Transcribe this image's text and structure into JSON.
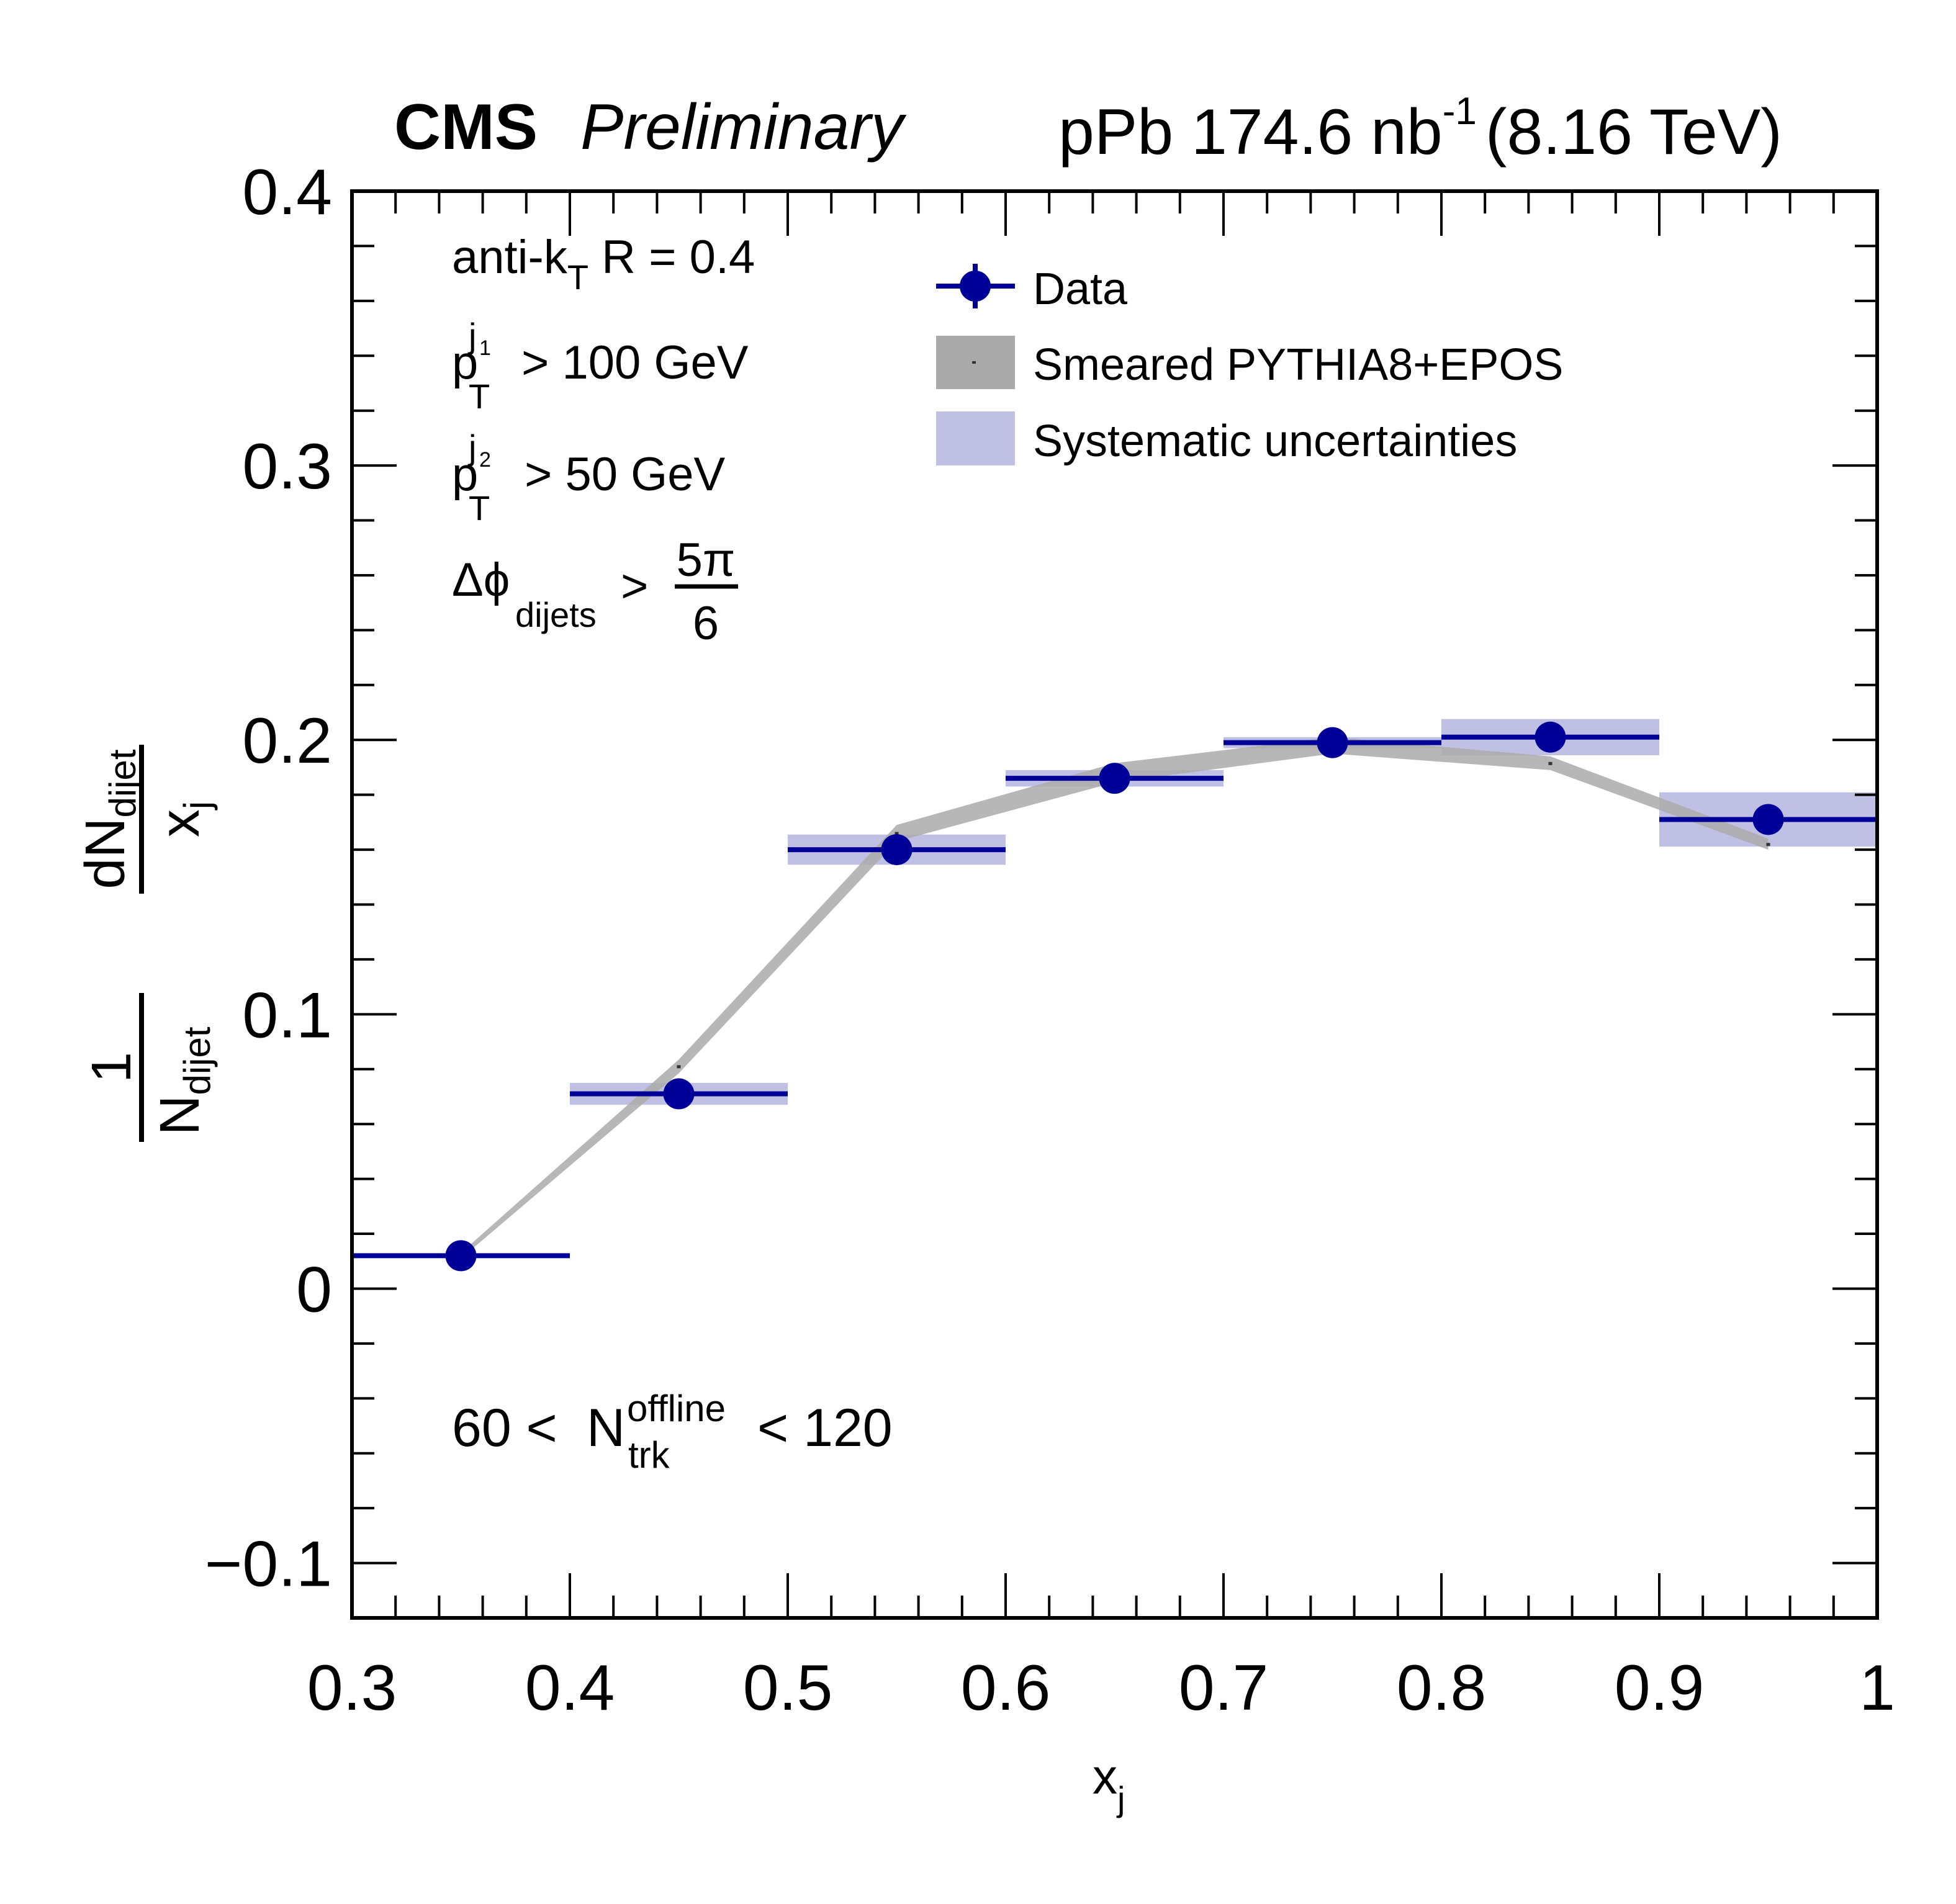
{
  "header": {
    "experiment": "CMS",
    "status": "Preliminary",
    "lumi_prefix": "pPb 174.6 nb",
    "lumi_exp": "-1",
    "energy": "(8.16 TeV)"
  },
  "annotations": {
    "jet_algo_main": "anti-k",
    "jet_algo_sub": "T",
    "jet_algo_rest": " R = 0.4",
    "pt1_p": "p",
    "pt1_sub": "T",
    "pt1_sup": "j",
    "pt1_supsub": "1",
    "pt1_rest": "> 100 GeV",
    "pt2_p": "p",
    "pt2_sub": "T",
    "pt2_sup": "j",
    "pt2_supsub": "2",
    "pt2_rest": "> 50 GeV",
    "dphi_main": "Δϕ",
    "dphi_sub": "dijets",
    "dphi_gt": ">",
    "dphi_num": "5π",
    "dphi_den": "6",
    "ntrk_lo": "60 <",
    "ntrk_N": "N",
    "ntrk_sup": "offline",
    "ntrk_sub": "trk",
    "ntrk_hi": "< 120"
  },
  "legend": {
    "placement": "top-center",
    "entries": [
      {
        "label": "Data",
        "style": "marker"
      },
      {
        "label": "Smeared PYTHIA8+EPOS",
        "style": "gray-band"
      },
      {
        "label": "Systematic uncertainties",
        "style": "blue-box"
      }
    ]
  },
  "colors": {
    "data": "#000099",
    "mc_band": "#aaaaaa",
    "mc_marker": "#333333",
    "syst_box": "#bfc0e3",
    "axis": "#000000"
  },
  "chart_data": {
    "type": "scatter",
    "title": "CMS Preliminary",
    "xlabel": "x_j",
    "ylabel": "1/N_dijet dN_dijet / x_j",
    "xlim": [
      0.3,
      1.0
    ],
    "ylim": [
      -0.12,
      0.4
    ],
    "xticks": [
      "0.3",
      "0.4",
      "0.5",
      "0.6",
      "0.7",
      "0.8",
      "0.9",
      "1"
    ],
    "yticks": [
      "−0.1",
      "0",
      "0.1",
      "0.2",
      "0.3",
      "0.4"
    ],
    "ytick_values": [
      -0.1,
      0,
      0.1,
      0.2,
      0.3,
      0.4
    ],
    "xtick_values": [
      0.3,
      0.4,
      0.5,
      0.6,
      0.7,
      0.8,
      0.9,
      1.0
    ],
    "x_minor_step": 0.02,
    "y_minor_step": 0.02,
    "grid": false,
    "series": [
      {
        "name": "Data",
        "bin_lo": [
          0.3,
          0.4,
          0.5,
          0.6,
          0.7,
          0.8,
          0.9
        ],
        "bin_hi": [
          0.4,
          0.5,
          0.6,
          0.7,
          0.8,
          0.9,
          1.0
        ],
        "x": [
          0.35,
          0.45,
          0.55,
          0.65,
          0.75,
          0.85,
          0.95
        ],
        "y": [
          0.012,
          0.071,
          0.16,
          0.186,
          0.199,
          0.201,
          0.171
        ],
        "syst": [
          0.0,
          0.004,
          0.0055,
          0.003,
          0.002,
          0.0066,
          0.0099
        ]
      },
      {
        "name": "Smeared PYTHIA8+EPOS",
        "x": [
          0.35,
          0.45,
          0.55,
          0.65,
          0.75,
          0.85,
          0.95
        ],
        "y": [
          0.012,
          0.081,
          0.166,
          0.188,
          0.198,
          0.1915,
          0.162
        ],
        "err": [
          0.001,
          0.0025,
          0.003,
          0.0035,
          0.003,
          0.0025,
          0.002
        ]
      }
    ]
  }
}
